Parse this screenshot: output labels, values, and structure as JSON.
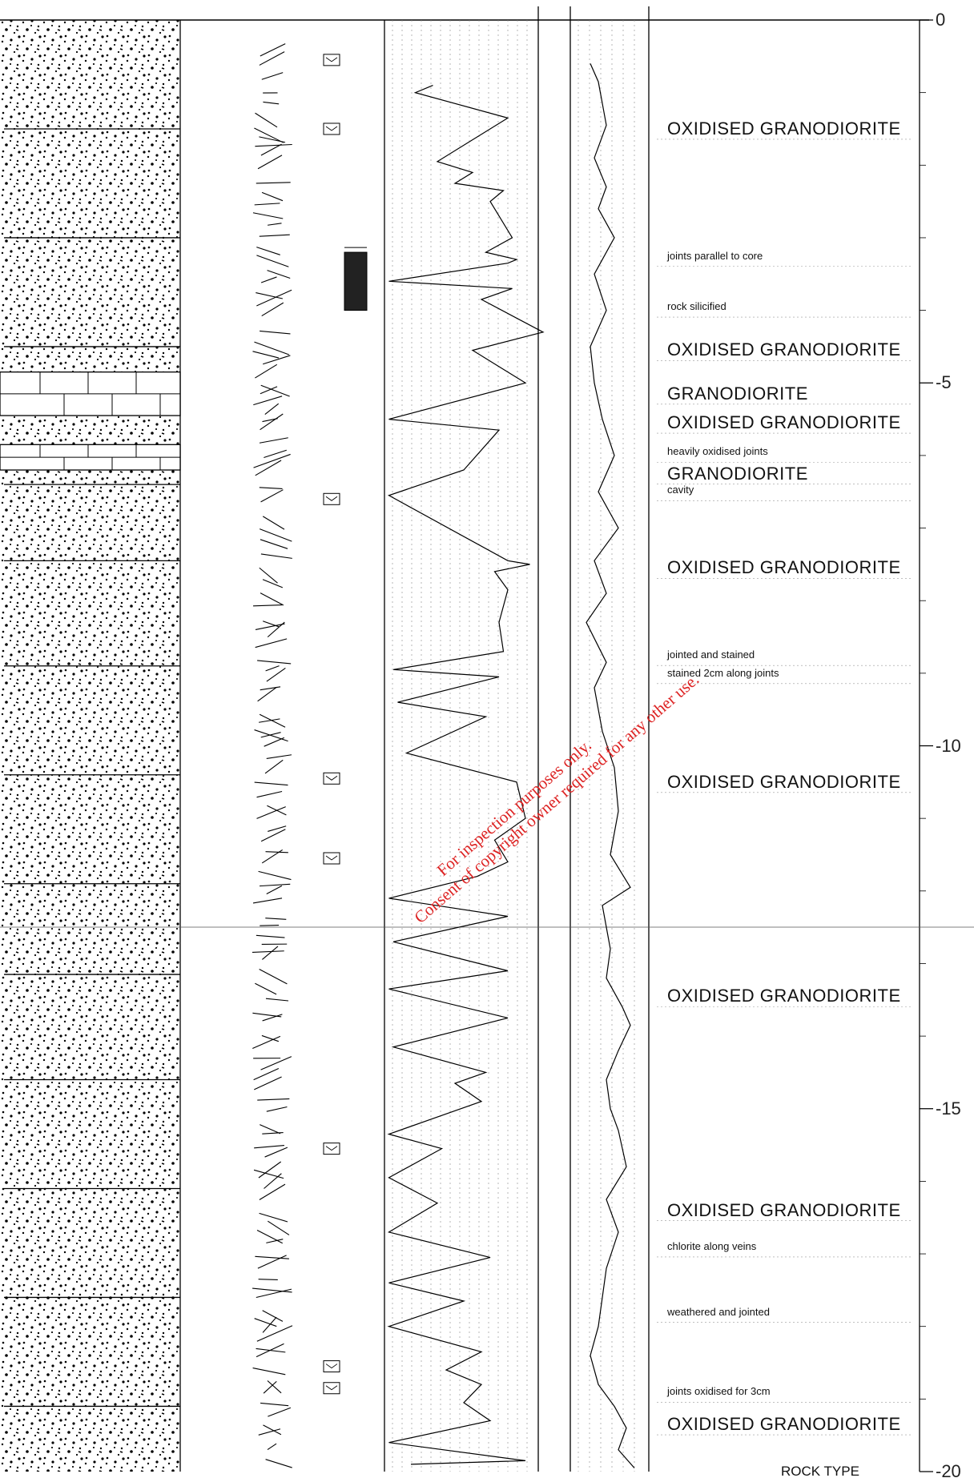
{
  "depth_axis": {
    "ticks": [
      {
        "depth": 0,
        "label": "0"
      },
      {
        "depth": -5,
        "label": "-5"
      },
      {
        "depth": -10,
        "label": "-10"
      },
      {
        "depth": -15,
        "label": "-15"
      },
      {
        "depth": -20,
        "label": "-20"
      }
    ]
  },
  "descriptions": [
    {
      "depth": -1.5,
      "text": "OXIDISED GRANODIORITE",
      "size": "big"
    },
    {
      "depth": -3.25,
      "text": "joints parallel to core",
      "size": "small"
    },
    {
      "depth": -3.95,
      "text": "rock silicified",
      "size": "small"
    },
    {
      "depth": -4.55,
      "text": "OXIDISED GRANODIORITE",
      "size": "big"
    },
    {
      "depth": -5.15,
      "text": "GRANODIORITE",
      "size": "big"
    },
    {
      "depth": -5.55,
      "text": "OXIDISED GRANODIORITE",
      "size": "big"
    },
    {
      "depth": -5.95,
      "text": "heavily oxidised joints",
      "size": "small"
    },
    {
      "depth": -6.25,
      "text": "GRANODIORITE",
      "size": "big"
    },
    {
      "depth": -6.48,
      "text": "cavity",
      "size": "small"
    },
    {
      "depth": -7.55,
      "text": "OXIDISED GRANODIORITE",
      "size": "big"
    },
    {
      "depth": -8.75,
      "text": "jointed and stained",
      "size": "small"
    },
    {
      "depth": -9.0,
      "text": "stained 2cm along joints",
      "size": "small"
    },
    {
      "depth": -10.5,
      "text": "OXIDISED GRANODIORITE",
      "size": "big"
    },
    {
      "depth": -13.45,
      "text": "OXIDISED GRANODIORITE",
      "size": "big"
    },
    {
      "depth": -16.4,
      "text": "OXIDISED GRANODIORITE",
      "size": "big"
    },
    {
      "depth": -16.9,
      "text": "chlorite along veins",
      "size": "small"
    },
    {
      "depth": -17.8,
      "text": "weathered and jointed",
      "size": "small"
    },
    {
      "depth": -18.9,
      "text": "joints oxidised for 3cm",
      "size": "small"
    },
    {
      "depth": -19.35,
      "text": "OXIDISED GRANODIORITE",
      "size": "big"
    }
  ],
  "footer_text": "ROCK TYPE",
  "watermark": {
    "line1": "For inspection purposes only.",
    "line2": "Consent of copyright owner required for any other use."
  },
  "lithology": {
    "granodiorite_bands": [
      [
        -4.85,
        -5.45
      ],
      [
        -5.85,
        -6.2
      ]
    ],
    "oxidised_breaks": [
      -1.5,
      -3.0,
      -4.5,
      -6.4,
      -7.45,
      -8.9,
      -10.4,
      -11.9,
      -13.15,
      -14.6,
      -16.1,
      -17.6,
      -19.1
    ]
  },
  "sample_markers": [
    -0.55,
    -1.5,
    -6.6,
    -10.45,
    -11.55,
    -15.55,
    -18.55,
    -18.85
  ],
  "silicified_zone": [
    -3.2,
    -4.0
  ],
  "curve1": [
    [
      -0.9,
      55
    ],
    [
      -1.0,
      35
    ],
    [
      -1.35,
      140
    ],
    [
      -1.95,
      60
    ],
    [
      -2.1,
      100
    ],
    [
      -2.25,
      80
    ],
    [
      -2.35,
      135
    ],
    [
      -2.5,
      120
    ],
    [
      -3.0,
      145
    ],
    [
      -3.2,
      115
    ],
    [
      -3.3,
      150
    ],
    [
      -3.35,
      140
    ],
    [
      -3.6,
      5
    ],
    [
      -3.7,
      145
    ],
    [
      -3.85,
      110
    ],
    [
      -4.3,
      180
    ],
    [
      -4.55,
      100
    ],
    [
      -5.0,
      160
    ],
    [
      -5.5,
      5
    ],
    [
      -5.65,
      130
    ],
    [
      -6.2,
      90
    ],
    [
      -6.55,
      5
    ],
    [
      -7.45,
      140
    ],
    [
      -7.5,
      165
    ],
    [
      -7.6,
      125
    ],
    [
      -7.85,
      140
    ],
    [
      -8.3,
      130
    ],
    [
      -8.7,
      135
    ],
    [
      -8.95,
      10
    ],
    [
      -9.05,
      130
    ],
    [
      -9.4,
      15
    ],
    [
      -9.6,
      115
    ],
    [
      -10.1,
      25
    ],
    [
      -10.5,
      150
    ],
    [
      -11.0,
      160
    ],
    [
      -11.3,
      125
    ],
    [
      -11.6,
      140
    ],
    [
      -11.8,
      105
    ],
    [
      -12.1,
      5
    ],
    [
      -12.35,
      140
    ],
    [
      -12.7,
      10
    ],
    [
      -13.1,
      140
    ],
    [
      -13.35,
      5
    ],
    [
      -13.75,
      140
    ],
    [
      -14.15,
      10
    ],
    [
      -14.5,
      115
    ],
    [
      -14.65,
      80
    ],
    [
      -14.9,
      110
    ],
    [
      -15.35,
      5
    ],
    [
      -15.55,
      65
    ],
    [
      -15.95,
      5
    ],
    [
      -16.3,
      60
    ],
    [
      -16.7,
      5
    ],
    [
      -17.05,
      120
    ],
    [
      -17.4,
      5
    ],
    [
      -17.65,
      90
    ],
    [
      -18.0,
      5
    ],
    [
      -18.35,
      110
    ],
    [
      -18.6,
      70
    ],
    [
      -18.8,
      110
    ],
    [
      -19.05,
      90
    ],
    [
      -19.3,
      120
    ],
    [
      -19.6,
      5
    ],
    [
      -19.85,
      160
    ],
    [
      -19.9,
      30
    ]
  ],
  "curve2": [
    [
      -0.6,
      25
    ],
    [
      -0.85,
      35
    ],
    [
      -1.15,
      40
    ],
    [
      -1.45,
      45
    ],
    [
      -1.9,
      30
    ],
    [
      -2.3,
      45
    ],
    [
      -2.6,
      35
    ],
    [
      -3.0,
      55
    ],
    [
      -3.5,
      30
    ],
    [
      -4.0,
      45
    ],
    [
      -4.5,
      25
    ],
    [
      -5.0,
      30
    ],
    [
      -5.5,
      40
    ],
    [
      -6.0,
      55
    ],
    [
      -6.5,
      35
    ],
    [
      -7.0,
      60
    ],
    [
      -7.45,
      30
    ],
    [
      -7.9,
      45
    ],
    [
      -8.3,
      20
    ],
    [
      -8.85,
      45
    ],
    [
      -9.2,
      30
    ],
    [
      -9.8,
      40
    ],
    [
      -10.3,
      55
    ],
    [
      -10.9,
      60
    ],
    [
      -11.5,
      50
    ],
    [
      -11.95,
      75
    ],
    [
      -12.2,
      40
    ],
    [
      -12.8,
      50
    ],
    [
      -13.2,
      45
    ],
    [
      -13.6,
      65
    ],
    [
      -13.85,
      75
    ],
    [
      -14.2,
      60
    ],
    [
      -14.6,
      45
    ],
    [
      -15.0,
      50
    ],
    [
      -15.3,
      60
    ],
    [
      -15.8,
      70
    ],
    [
      -16.25,
      45
    ],
    [
      -16.7,
      60
    ],
    [
      -17.2,
      45
    ],
    [
      -17.6,
      40
    ],
    [
      -18.0,
      35
    ],
    [
      -18.4,
      25
    ],
    [
      -18.8,
      35
    ],
    [
      -19.1,
      55
    ],
    [
      -19.4,
      70
    ],
    [
      -19.7,
      60
    ],
    [
      -19.95,
      80
    ]
  ]
}
